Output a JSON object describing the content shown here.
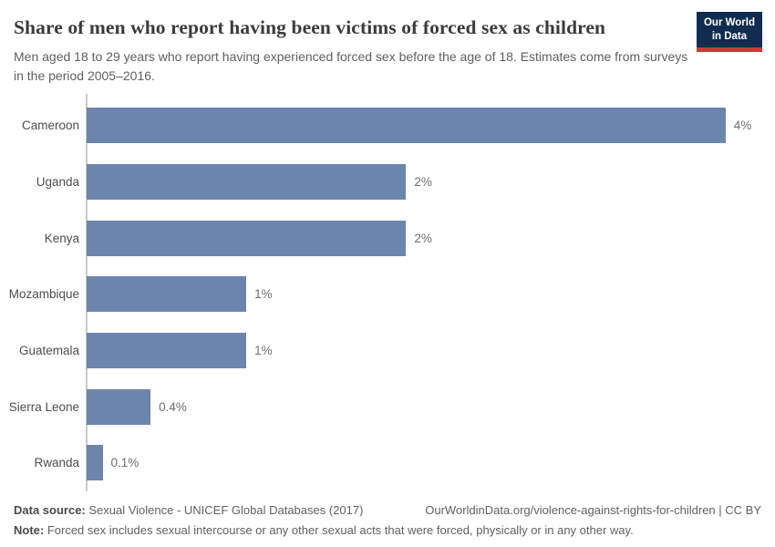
{
  "header": {
    "title": "Share of men who report having been victims of forced sex as children",
    "subtitle": "Men aged 18 to 29 years who report having experienced forced sex before the age of 18. Estimates come from surveys in the period 2005–2016.",
    "logo": {
      "line1": "Our World",
      "line2": "in Data"
    }
  },
  "chart_data": {
    "type": "bar",
    "orientation": "horizontal",
    "title": "Share of men who report having been victims of forced sex as children",
    "categories": [
      "Cameroon",
      "Uganda",
      "Kenya",
      "Mozambique",
      "Guatemala",
      "Sierra Leone",
      "Rwanda"
    ],
    "values": [
      4,
      2,
      2,
      1,
      1,
      0.4,
      0.1
    ],
    "value_labels": [
      "4%",
      "2%",
      "2%",
      "1%",
      "1%",
      "0.4%",
      "0.1%"
    ],
    "unit": "%",
    "xlim": [
      0,
      4.31
    ],
    "grid": false,
    "legend": false,
    "bar_color": "#6c85ad"
  },
  "footer": {
    "datasource_label": "Data source:",
    "datasource_text": " Sexual Violence - UNICEF Global Databases (2017)",
    "link_text": "OurWorldinData.org/violence-against-rights-for-children | CC BY",
    "note_label": "Note:",
    "note_text": " Forced sex includes sexual intercourse or any other sexual acts that were forced, physically or in any other way."
  },
  "colors": {
    "bar": "#6c85ad",
    "logo_background": "#102d50",
    "logo_accent": "#c63d31",
    "axis_line": "#c9c9c9",
    "title_text": "#3b3b3b",
    "body_text": "#5f5f5f"
  }
}
